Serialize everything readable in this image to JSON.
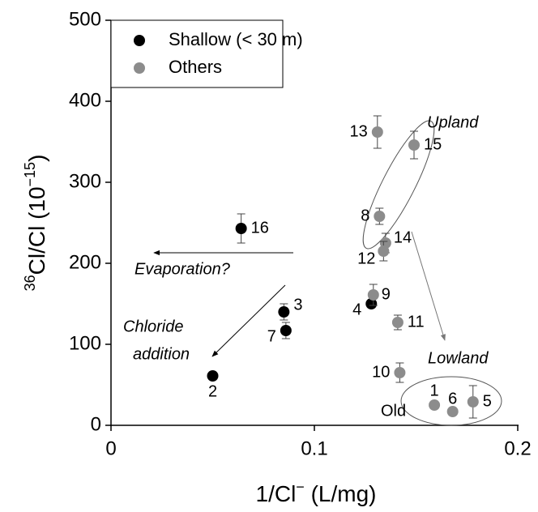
{
  "chart_data": {
    "type": "scatter",
    "x_label": [
      "1/Cl",
      "−",
      " (L/mg)"
    ],
    "y_label": [
      "36",
      "Cl/Cl (10",
      "−15",
      ")"
    ],
    "xlim": [
      0,
      0.2
    ],
    "ylim": [
      0,
      500
    ],
    "xticks": [
      0,
      0.1,
      0.2
    ],
    "yticks": [
      0,
      100,
      200,
      300,
      400,
      500
    ],
    "legend": "upper left",
    "series": [
      {
        "name": "Shallow (< 30 m)",
        "color": "#000000",
        "labels": [
          "16",
          "3",
          "7",
          "2",
          "4"
        ],
        "x": [
          0.064,
          0.085,
          0.086,
          0.05,
          0.128
        ],
        "values": [
          243,
          140,
          117,
          61,
          150
        ],
        "errors": [
          18,
          10,
          10,
          null,
          null
        ]
      },
      {
        "name": "Others",
        "color": "#8c8c8c",
        "labels": [
          "13",
          "15",
          "8",
          "14",
          "12",
          "9",
          "11",
          "10",
          "1",
          "6",
          "5"
        ],
        "x": [
          0.131,
          0.149,
          0.132,
          0.135,
          0.134,
          0.129,
          0.141,
          0.142,
          0.159,
          0.168,
          0.178
        ],
        "values": [
          362,
          346,
          258,
          225,
          215,
          161,
          127,
          65,
          25,
          17,
          29
        ],
        "errors": [
          20,
          17,
          10,
          12,
          12,
          13,
          9,
          12,
          null,
          null,
          20
        ]
      }
    ],
    "annotations": [
      "Upland",
      "Lowland",
      "Evaporation?",
      "Chloride",
      "addition",
      "Old"
    ]
  }
}
